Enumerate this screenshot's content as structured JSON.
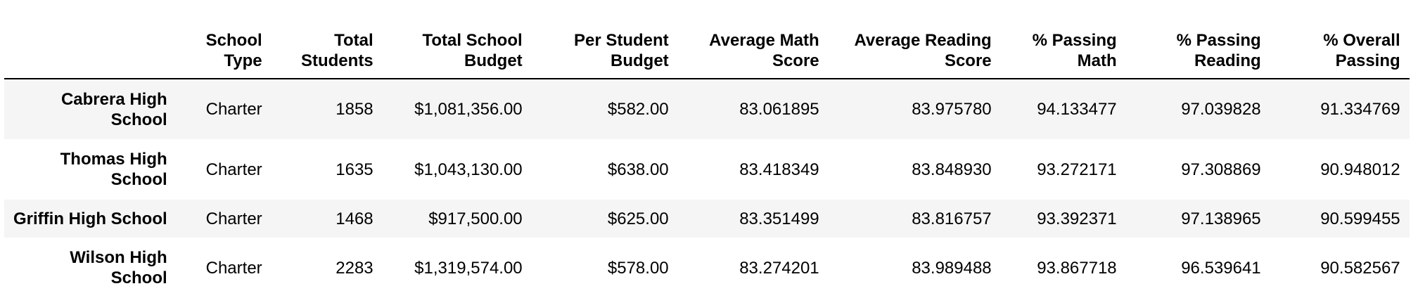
{
  "table": {
    "columns": [
      "",
      "School Type",
      "Total Students",
      "Total School Budget",
      "Per Student Budget",
      "Average Math Score",
      "Average Reading Score",
      "% Passing Math",
      "% Passing Reading",
      "% Overall Passing"
    ],
    "rows": [
      {
        "school": "Cabrera High School",
        "type": "Charter",
        "students": "1858",
        "budget": "$1,081,356.00",
        "per_student": "$582.00",
        "avg_math": "83.061895",
        "avg_reading": "83.975780",
        "pct_math": "94.133477",
        "pct_reading": "97.039828",
        "pct_overall": "91.334769"
      },
      {
        "school": "Thomas High School",
        "type": "Charter",
        "students": "1635",
        "budget": "$1,043,130.00",
        "per_student": "$638.00",
        "avg_math": "83.418349",
        "avg_reading": "83.848930",
        "pct_math": "93.272171",
        "pct_reading": "97.308869",
        "pct_overall": "90.948012"
      },
      {
        "school": "Griffin High School",
        "type": "Charter",
        "students": "1468",
        "budget": "$917,500.00",
        "per_student": "$625.00",
        "avg_math": "83.351499",
        "avg_reading": "83.816757",
        "pct_math": "93.392371",
        "pct_reading": "97.138965",
        "pct_overall": "90.599455"
      },
      {
        "school": "Wilson High School",
        "type": "Charter",
        "students": "2283",
        "budget": "$1,319,574.00",
        "per_student": "$578.00",
        "avg_math": "83.274201",
        "avg_reading": "83.989488",
        "pct_math": "93.867718",
        "pct_reading": "96.539641",
        "pct_overall": "90.582567"
      }
    ]
  },
  "colors": {
    "stripe": "#f5f5f5",
    "header_rule": "#000000",
    "text": "#000000"
  }
}
